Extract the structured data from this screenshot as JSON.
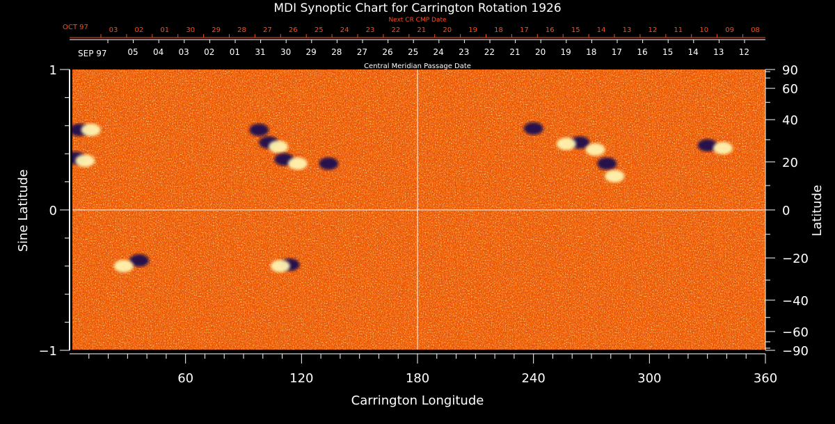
{
  "chart_data": {
    "type": "heatmap",
    "title": "MDI Synoptic Chart for Carrington Rotation 1926",
    "xlabel": "Carrington Longitude",
    "ylabel_left": "Sine Latitude",
    "ylabel_right": "Latitude",
    "xlim": [
      0,
      360
    ],
    "ylim_sine": [
      -1,
      1
    ],
    "x_ticks": [
      60,
      120,
      180,
      240,
      300,
      360
    ],
    "x_minor_step": 10,
    "left_y_ticks": [
      {
        "value": 1,
        "label": "1"
      },
      {
        "value": 0,
        "label": "0"
      },
      {
        "value": -1,
        "label": "−1"
      }
    ],
    "left_minor_step": 0.2,
    "right_y_ticks": [
      {
        "lat": 90,
        "label": "90"
      },
      {
        "lat": 60,
        "label": "60"
      },
      {
        "lat": 40,
        "label": "40"
      },
      {
        "lat": 20,
        "label": "20"
      },
      {
        "lat": 0,
        "label": "0"
      },
      {
        "lat": -20,
        "label": "−20"
      },
      {
        "lat": -40,
        "label": "−40"
      },
      {
        "lat": -60,
        "label": "−60"
      },
      {
        "lat": -90,
        "label": "−90"
      }
    ],
    "right_minor_lats": [
      80,
      70,
      50,
      30,
      10,
      -10,
      -30,
      -50,
      -70,
      -80
    ],
    "cmp_axis": {
      "label": "Central Meridian Passage Date",
      "start_label": "SEP 97",
      "dates": [
        "05",
        "04",
        "03",
        "02",
        "01",
        "31",
        "30",
        "29",
        "28",
        "27",
        "26",
        "25",
        "24",
        "23",
        "22",
        "21",
        "20",
        "19",
        "18",
        "17",
        "16",
        "15",
        "14",
        "13",
        "12"
      ]
    },
    "next_cmp_axis": {
      "label": "Next CR CMP Date",
      "start_label": "OCT 97",
      "dates": [
        "03",
        "02",
        "01",
        "30",
        "29",
        "28",
        "27",
        "26",
        "25",
        "24",
        "23",
        "22",
        "21",
        "20",
        "19",
        "18",
        "17",
        "16",
        "15",
        "14",
        "13",
        "12",
        "11",
        "10",
        "09",
        "08"
      ]
    },
    "colors": {
      "background": "#ff6a00",
      "negative_polarity": "#1a0a50",
      "positive_polarity": "#fff4b0",
      "next_cmp_text": "#ff4a1a",
      "gridline": "#ffffff"
    },
    "active_regions": [
      {
        "lon": 5,
        "sinlat": 0.57,
        "polarity": "negative"
      },
      {
        "lon": 11,
        "sinlat": 0.57,
        "polarity": "positive"
      },
      {
        "lon": 3,
        "sinlat": 0.37,
        "polarity": "negative"
      },
      {
        "lon": 8,
        "sinlat": 0.35,
        "polarity": "positive"
      },
      {
        "lon": 98,
        "sinlat": 0.57,
        "polarity": "negative"
      },
      {
        "lon": 103,
        "sinlat": 0.48,
        "polarity": "negative"
      },
      {
        "lon": 108,
        "sinlat": 0.45,
        "polarity": "positive"
      },
      {
        "lon": 111,
        "sinlat": 0.36,
        "polarity": "negative"
      },
      {
        "lon": 118,
        "sinlat": 0.33,
        "polarity": "positive"
      },
      {
        "lon": 134,
        "sinlat": 0.33,
        "polarity": "negative"
      },
      {
        "lon": 36,
        "sinlat": -0.36,
        "polarity": "negative"
      },
      {
        "lon": 28,
        "sinlat": -0.4,
        "polarity": "positive"
      },
      {
        "lon": 114,
        "sinlat": -0.39,
        "polarity": "negative"
      },
      {
        "lon": 109,
        "sinlat": -0.4,
        "polarity": "positive"
      },
      {
        "lon": 264,
        "sinlat": 0.48,
        "polarity": "negative"
      },
      {
        "lon": 257,
        "sinlat": 0.47,
        "polarity": "positive"
      },
      {
        "lon": 272,
        "sinlat": 0.43,
        "polarity": "positive"
      },
      {
        "lon": 278,
        "sinlat": 0.33,
        "polarity": "negative"
      },
      {
        "lon": 282,
        "sinlat": 0.24,
        "polarity": "positive"
      },
      {
        "lon": 330,
        "sinlat": 0.46,
        "polarity": "negative"
      },
      {
        "lon": 338,
        "sinlat": 0.44,
        "polarity": "positive"
      },
      {
        "lon": 240,
        "sinlat": 0.58,
        "polarity": "negative"
      }
    ]
  }
}
